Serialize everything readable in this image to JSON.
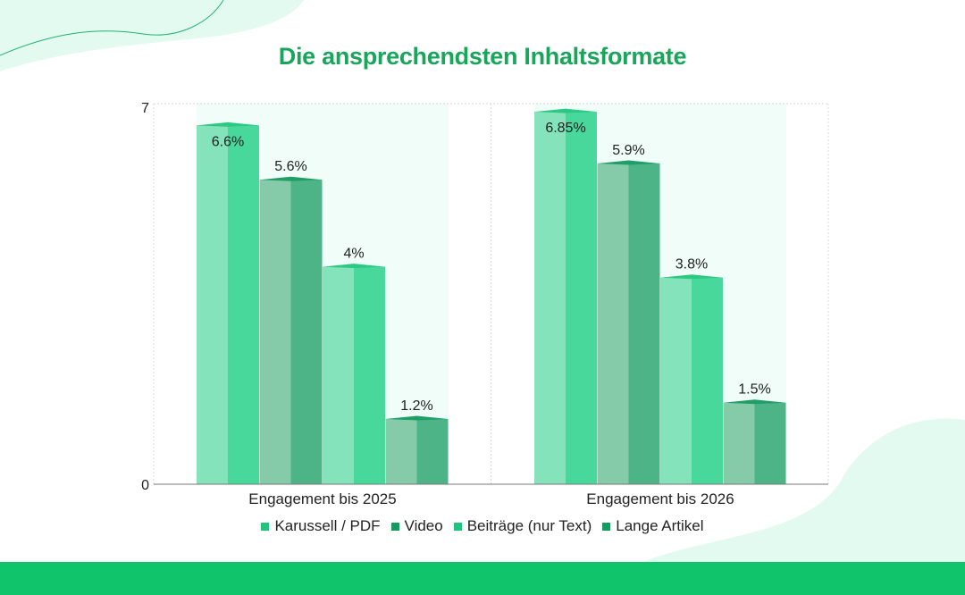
{
  "title": "Die ansprechendsten Inhaltsformate",
  "colors": {
    "title": "#1aa65a",
    "footer": "#0fc46a",
    "decoration": "#e3faf1",
    "decoration_line": "#22b46d",
    "column_band": "#f1fdf8"
  },
  "chart_data": {
    "type": "bar",
    "title": "Die ansprechendsten Inhaltsformate",
    "xlabel": "",
    "ylabel": "",
    "ylim": [
      0,
      7
    ],
    "y_ticks": [
      "0",
      "7"
    ],
    "grid": "dashed",
    "legend_position": "bottom",
    "categories": [
      "Engagement bis 2025",
      "Engagement bis 2026"
    ],
    "series": [
      {
        "name": "Karussell / PDF",
        "values": [
          6.6,
          6.85
        ],
        "labels": [
          "6.6%",
          "6.85%"
        ],
        "color_light": "#84e3bb",
        "color_dark": "#48d89c",
        "color_top": "#2cc984",
        "legend_color": "#20c47c"
      },
      {
        "name": "Video",
        "values": [
          5.6,
          5.9
        ],
        "labels": [
          "5.6%",
          "5.9%"
        ],
        "color_light": "#85cba9",
        "color_dark": "#4cb487",
        "color_top": "#1f9e66",
        "legend_color": "#169a5e"
      },
      {
        "name": "Beiträge (nur Text)",
        "values": [
          4,
          3.8
        ],
        "labels": [
          "4%",
          "3.8%"
        ],
        "color_light": "#84e3bb",
        "color_dark": "#48d89c",
        "color_top": "#2cc984",
        "legend_color": "#20c47c"
      },
      {
        "name": "Lange Artikel",
        "values": [
          1.2,
          1.5
        ],
        "labels": [
          "1.2%",
          "1.5%"
        ],
        "color_light": "#85cba9",
        "color_dark": "#4cb487",
        "color_top": "#1f9e66",
        "legend_color": "#169a5e"
      }
    ]
  }
}
